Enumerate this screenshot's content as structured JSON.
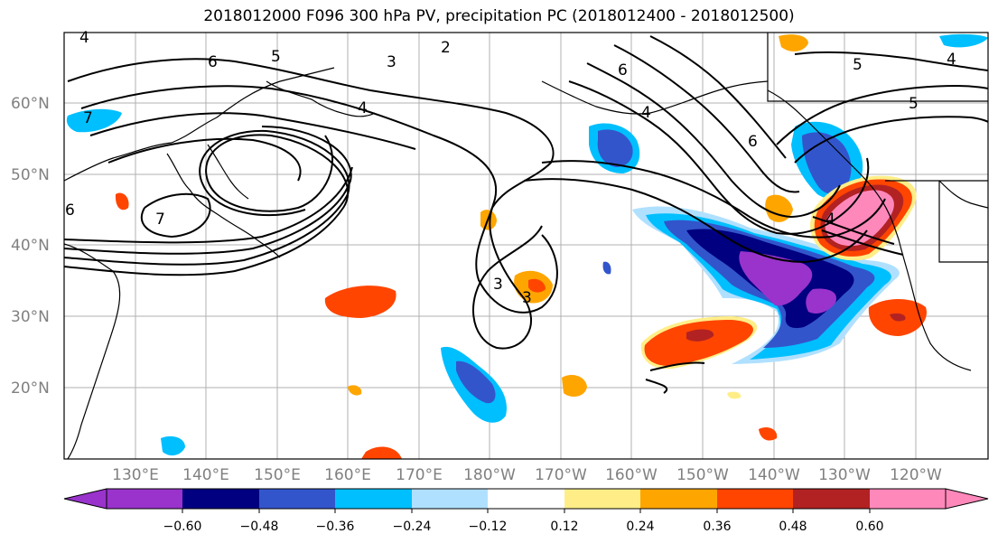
{
  "title": "2018012000 F096 300 hPa PV, precipitation PC (2018012400 - 2018012500)",
  "colors": {
    "levels": [
      "#9933cc",
      "#000080",
      "#3355cc",
      "#00bfff",
      "#b0e0ff",
      "#ffffff",
      "#ffee88",
      "#ffa500",
      "#ff4500",
      "#b22222",
      "#ff88bb"
    ],
    "grid": "#b0b0b0",
    "contour": "#000000"
  },
  "lat_labels": [
    "60°N",
    "50°N",
    "40°N",
    "30°N",
    "20°N"
  ],
  "lon_labels": [
    "130°E",
    "140°E",
    "150°E",
    "160°E",
    "170°E",
    "180°W",
    "170°W",
    "160°W",
    "150°W",
    "140°W",
    "130°W",
    "120°W"
  ],
  "colorbar_ticks": [
    "−0.60",
    "−0.48",
    "−0.36",
    "−0.24",
    "−0.12",
    "0.12",
    "0.24",
    "0.36",
    "0.48",
    "0.60"
  ],
  "pv_contour_labels": [
    "4",
    "6",
    "5",
    "2",
    "3",
    "4",
    "6",
    "5",
    "4",
    "5",
    "3",
    "3",
    "4",
    "4",
    "6",
    "7",
    "7",
    "6"
  ]
}
